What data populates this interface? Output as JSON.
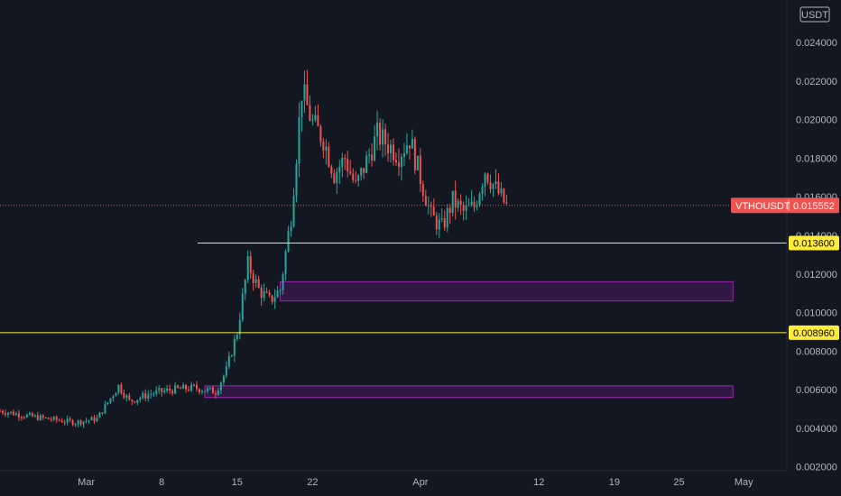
{
  "header": {
    "currency_badge": "USDT"
  },
  "price_label": {
    "symbol": "VTHOUSDT",
    "value": "0.015552"
  },
  "levels": {
    "upper": {
      "value": 0.0136,
      "label": "0.013600"
    },
    "lower": {
      "value": 0.00896,
      "label": "0.008960"
    }
  },
  "colors": {
    "background": "#131722",
    "up": "#26a69a",
    "down": "#ef5350",
    "level_line": "#ffeb3b",
    "zone_border": "#9c27b0",
    "zone_fill": "#4a1a5c",
    "price_line": "#ef5350",
    "tick_text": "#b2b5be"
  },
  "chart_data": {
    "type": "candlestick",
    "symbol": "VTHOUSDT",
    "last_price": 0.015552,
    "ylim": [
      0.0018,
      0.0262
    ],
    "xlim": [
      "2021-02-21",
      "2021-05-05"
    ],
    "y_ticks": [
      "0.002000",
      "0.004000",
      "0.006000",
      "0.008000",
      "0.010000",
      "0.012000",
      "0.014000",
      "0.016000",
      "0.018000",
      "0.020000",
      "0.022000",
      "0.024000"
    ],
    "x_ticks": [
      {
        "date": "2021-03-01",
        "label": "Mar"
      },
      {
        "date": "2021-03-08",
        "label": "8"
      },
      {
        "date": "2021-03-15",
        "label": "15"
      },
      {
        "date": "2021-03-22",
        "label": "22"
      },
      {
        "date": "2021-04-01",
        "label": "Apr"
      },
      {
        "date": "2021-04-12",
        "label": "12"
      },
      {
        "date": "2021-04-19",
        "label": "19"
      },
      {
        "date": "2021-04-25",
        "label": "25"
      },
      {
        "date": "2021-05-01",
        "label": "May"
      }
    ],
    "horizontal_levels": [
      0.0136,
      0.00896
    ],
    "zones": [
      {
        "start": "2021-03-19",
        "end": "2021-04-30",
        "low": 0.0106,
        "high": 0.0116
      },
      {
        "start": "2021-03-12",
        "end": "2021-04-30",
        "low": 0.0056,
        "high": 0.0062
      }
    ],
    "path": [
      [
        "2021-02-21",
        0.0049
      ],
      [
        "2021-02-24",
        0.0046
      ],
      [
        "2021-02-28",
        0.0043
      ],
      [
        "2021-03-02",
        0.0045
      ],
      [
        "2021-03-04",
        0.0062
      ],
      [
        "2021-03-05",
        0.0054
      ],
      [
        "2021-03-07",
        0.0058
      ],
      [
        "2021-03-09",
        0.006
      ],
      [
        "2021-03-11",
        0.0061
      ],
      [
        "2021-03-13",
        0.0059
      ],
      [
        "2021-03-14",
        0.007
      ],
      [
        "2021-03-15",
        0.009
      ],
      [
        "2021-03-16",
        0.0125
      ],
      [
        "2021-03-17",
        0.0112
      ],
      [
        "2021-03-18",
        0.0106
      ],
      [
        "2021-03-19",
        0.0112
      ],
      [
        "2021-03-20",
        0.015
      ],
      [
        "2021-03-21",
        0.0215
      ],
      [
        "2021-03-22",
        0.0198
      ],
      [
        "2021-03-23",
        0.019
      ],
      [
        "2021-03-24",
        0.0172
      ],
      [
        "2021-03-25",
        0.018
      ],
      [
        "2021-03-26",
        0.0165
      ],
      [
        "2021-03-28",
        0.0192
      ],
      [
        "2021-03-30",
        0.0182
      ],
      [
        "2021-03-31",
        0.019
      ],
      [
        "2021-04-01",
        0.017
      ],
      [
        "2021-04-02",
        0.015
      ],
      [
        "2021-04-03",
        0.0144
      ],
      [
        "2021-04-04",
        0.0158
      ],
      [
        "2021-04-05",
        0.0152
      ],
      [
        "2021-04-06",
        0.0155
      ],
      [
        "2021-04-07",
        0.0174
      ],
      [
        "2021-04-08",
        0.0164
      ],
      [
        "2021-04-09",
        0.0155
      ]
    ]
  }
}
